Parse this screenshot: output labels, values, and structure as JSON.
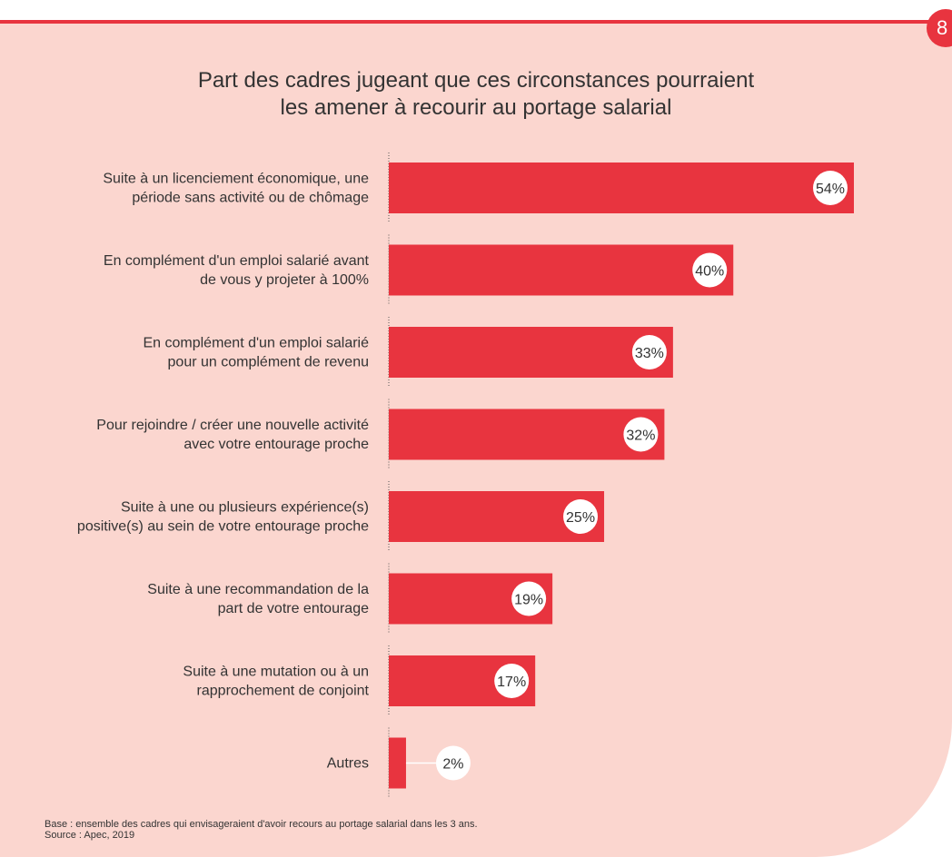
{
  "page": {
    "number": "8"
  },
  "chart_data": {
    "type": "bar",
    "orientation": "horizontal",
    "title": [
      "Part des cadres jugeant que ces circonstances pourraient",
      "les amener à recourir au portage salarial"
    ],
    "categories": [
      [
        "Suite à un licenciement économique, une",
        "période sans activité ou de chômage"
      ],
      [
        "En complément d'un emploi salarié avant",
        "de vous y projeter à 100%"
      ],
      [
        "En complément d'un emploi salarié",
        "pour un complément de revenu"
      ],
      [
        "Pour rejoindre / créer une nouvelle activité",
        "avec votre entourage proche"
      ],
      [
        "Suite à une ou plusieurs expérience(s)",
        "positive(s) au sein de votre entourage proche"
      ],
      [
        "Suite à une recommandation de la",
        "part de votre entourage"
      ],
      [
        "Suite à une mutation ou à un",
        "rapprochement de conjoint"
      ],
      [
        "Autres"
      ]
    ],
    "values": [
      54,
      40,
      33,
      32,
      25,
      19,
      17,
      2
    ],
    "value_labels": [
      "54%",
      "40%",
      "33%",
      "32%",
      "25%",
      "19%",
      "17%",
      "2%"
    ],
    "bar_color": "#e8343f",
    "background_color": "#fbd6cf",
    "xlim": [
      0,
      54
    ]
  },
  "footnote": {
    "base": "Base : ensemble des cadres qui envisageraient d'avoir recours au portage salarial dans les 3 ans.",
    "source": "Source : Apec, 2019"
  }
}
